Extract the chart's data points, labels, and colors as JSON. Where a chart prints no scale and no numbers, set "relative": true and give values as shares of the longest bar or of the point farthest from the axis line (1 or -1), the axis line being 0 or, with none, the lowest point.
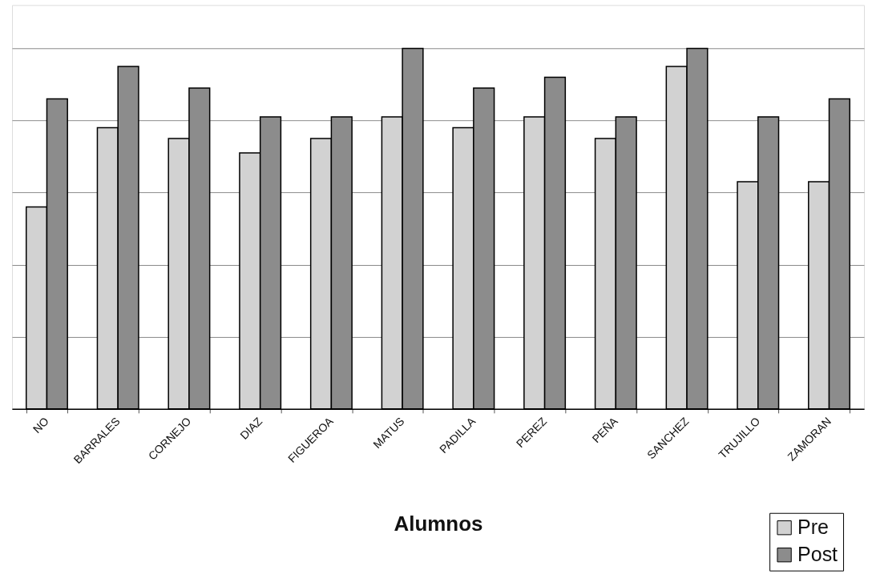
{
  "chart_data": {
    "type": "bar",
    "xlabel": "Alumnos",
    "relative": true,
    "grid": "y",
    "legend": "bottom right",
    "categories": [
      "NO",
      "BARRALES",
      "CORNEJO",
      "DIAZ",
      "FIGUEROA",
      "MATUS",
      "PADILLA",
      "PEREZ",
      "PEÑA",
      "SANCHEZ",
      "TRUJILLO",
      "ZAMORAN"
    ],
    "series": [
      {
        "name": "Pre",
        "color": "#d2d2d2",
        "values": [
          0.56,
          0.78,
          0.75,
          0.71,
          0.75,
          0.81,
          0.78,
          0.81,
          0.75,
          0.95,
          0.63,
          0.63
        ]
      },
      {
        "name": "Post",
        "color": "#8c8c8c",
        "values": [
          0.86,
          0.95,
          0.89,
          0.81,
          0.81,
          1.0,
          0.89,
          0.92,
          0.81,
          1.0,
          0.81,
          0.86
        ]
      }
    ]
  }
}
